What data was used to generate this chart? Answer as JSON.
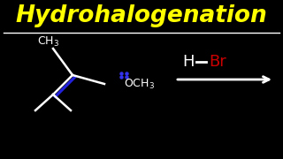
{
  "background_color": "#000000",
  "title": "Hydrohalogenation",
  "title_color": "#ffff00",
  "title_fontsize": 19,
  "divider_color": "#ffffff",
  "molecule_color": "#ffffff",
  "double_bond_color": "#2222dd",
  "h_color": "#ffffff",
  "br_color": "#cc0000",
  "dots_color": "#3333ee",
  "arrow_color": "#ffffff",
  "ch3_fontsize": 9,
  "och3_fontsize": 9,
  "hbr_fontsize": 13
}
